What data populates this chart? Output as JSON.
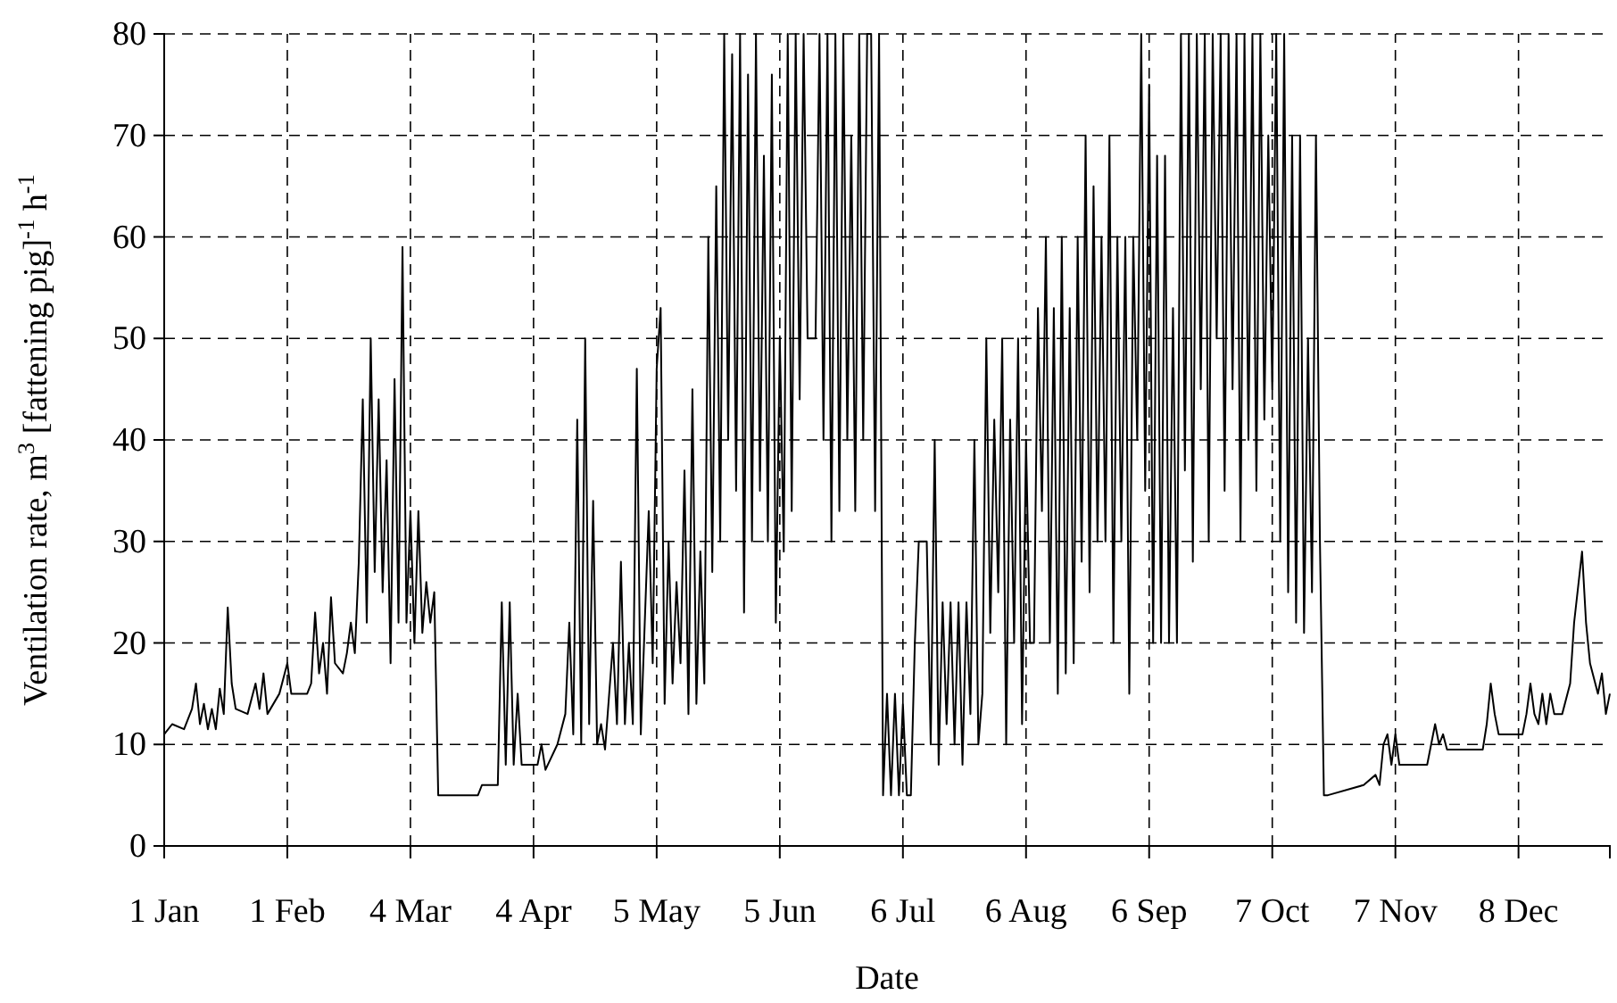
{
  "chart_data": {
    "type": "line",
    "xlabel": "Date",
    "ylabel": "Ventilation rate, m$^{3}$ [fattening pig]$^{-1}$ h$^{-1}$",
    "xlim": [
      "--01-01",
      "--12-31"
    ],
    "xticks": [
      {
        "value": "--01-01",
        "label": "1 Jan"
      },
      {
        "value": "--02-01",
        "label": "1 Feb"
      },
      {
        "value": "--03-04",
        "label": "4 Mar"
      },
      {
        "value": "--04-04",
        "label": "4 Apr"
      },
      {
        "value": "--05-05",
        "label": "5 May"
      },
      {
        "value": "--06-05",
        "label": "5 Jun"
      },
      {
        "value": "--07-06",
        "label": "6 Jul"
      },
      {
        "value": "--08-06",
        "label": "6 Aug"
      },
      {
        "value": "--09-06",
        "label": "6 Sep"
      },
      {
        "value": "--10-07",
        "label": "7 Oct"
      },
      {
        "value": "--11-07",
        "label": "7 Nov"
      },
      {
        "value": "--12-08",
        "label": "8 Dec"
      }
    ],
    "ylim": [
      0,
      80
    ],
    "yticks": [
      0,
      10,
      20,
      30,
      40,
      50,
      60,
      70,
      80
    ],
    "grid": true,
    "series": [
      {
        "color": "#000000",
        "x": [
          "--01-01",
          "--01-03",
          "--01-06",
          "--01-08",
          "--01-09",
          "--01-10",
          "--01-11",
          "--01-12",
          "--01-13",
          "--01-14",
          "--01-15",
          "--01-16",
          "--01-17",
          "--01-18",
          "--01-19",
          "--01-22",
          "--01-24",
          "--01-25",
          "--01-26",
          "--01-27",
          "--01-30",
          "--02-01",
          "--02-02",
          "--02-06",
          "--02-07",
          "--02-08",
          "--02-09",
          "--02-10",
          "--02-11",
          "--02-12",
          "--02-13",
          "--02-15",
          "--02-16",
          "--02-17",
          "--02-18",
          "--02-19",
          "--02-20",
          "--02-21",
          "--02-22",
          "--02-23",
          "--02-24",
          "--02-25",
          "--02-26",
          "--02-27",
          "--02-28",
          "--03-01",
          "--03-02",
          "--03-03",
          "--03-04",
          "--03-05",
          "--03-06",
          "--03-07",
          "--03-08",
          "--03-09",
          "--03-10",
          "--03-11",
          "--03-21",
          "--03-22",
          "--03-26",
          "--03-27",
          "--03-28",
          "--03-29",
          "--03-30",
          "--03-31",
          "--04-01",
          "--04-05",
          "--04-06",
          "--04-07",
          "--04-10",
          "--04-12",
          "--04-13",
          "--04-14",
          "--04-15",
          "--04-16",
          "--04-17",
          "--04-18",
          "--04-19",
          "--04-20",
          "--04-21",
          "--04-22",
          "--04-24",
          "--04-25",
          "--04-26",
          "--04-27",
          "--04-28",
          "--04-29",
          "--04-30",
          "--05-01",
          "--05-03",
          "--05-04",
          "--05-05",
          "--05-06",
          "--05-07",
          "--05-08",
          "--05-09",
          "--05-10",
          "--05-11",
          "--05-12",
          "--05-13",
          "--05-14",
          "--05-15",
          "--05-16",
          "--05-17",
          "--05-18",
          "--05-19",
          "--05-20",
          "--05-21",
          "--05-22",
          "--05-23",
          "--05-24",
          "--05-25",
          "--05-26",
          "--05-27",
          "--05-28",
          "--05-29",
          "--05-30",
          "--05-31",
          "--06-01",
          "--06-02",
          "--06-03",
          "--06-04",
          "--06-05",
          "--06-06",
          "--06-07",
          "--06-08",
          "--06-09",
          "--06-10",
          "--06-11",
          "--06-12",
          "--06-14",
          "--06-15",
          "--06-16",
          "--06-17",
          "--06-18",
          "--06-19",
          "--06-20",
          "--06-21",
          "--06-22",
          "--06-23",
          "--06-24",
          "--06-25",
          "--06-26",
          "--06-27",
          "--06-28",
          "--06-29",
          "--06-30",
          "--07-01",
          "--07-02",
          "--07-03",
          "--07-04",
          "--07-05",
          "--07-06",
          "--07-07",
          "--07-08",
          "--07-09",
          "--07-10",
          "--07-12",
          "--07-13",
          "--07-14",
          "--07-15",
          "--07-16",
          "--07-17",
          "--07-18",
          "--07-19",
          "--07-20",
          "--07-21",
          "--07-22",
          "--07-23",
          "--07-24",
          "--07-25",
          "--07-26",
          "--07-27",
          "--07-28",
          "--07-29",
          "--07-30",
          "--07-31",
          "--08-01",
          "--08-02",
          "--08-03",
          "--08-04",
          "--08-05",
          "--08-06",
          "--08-07",
          "--08-08",
          "--08-09",
          "--08-10",
          "--08-11",
          "--08-12",
          "--08-13",
          "--08-14",
          "--08-15",
          "--08-16",
          "--08-17",
          "--08-18",
          "--08-19",
          "--08-20",
          "--08-21",
          "--08-22",
          "--08-23",
          "--08-24",
          "--08-25",
          "--08-26",
          "--08-27",
          "--08-28",
          "--08-29",
          "--08-30",
          "--08-31",
          "--09-01",
          "--09-02",
          "--09-03",
          "--09-04",
          "--09-05",
          "--09-06",
          "--09-07",
          "--09-08",
          "--09-09",
          "--09-10",
          "--09-11",
          "--09-12",
          "--09-13",
          "--09-14",
          "--09-15",
          "--09-16",
          "--09-17",
          "--09-18",
          "--09-19",
          "--09-20",
          "--09-21",
          "--09-22",
          "--09-23",
          "--09-24",
          "--09-25",
          "--09-26",
          "--09-27",
          "--09-28",
          "--09-29",
          "--09-30",
          "--10-01",
          "--10-02",
          "--10-03",
          "--10-04",
          "--10-05",
          "--10-06",
          "--10-07",
          "--10-08",
          "--10-09",
          "--10-10",
          "--10-11",
          "--10-12",
          "--10-13",
          "--10-14",
          "--10-15",
          "--10-16",
          "--10-17",
          "--10-18",
          "--10-19",
          "--10-20",
          "--10-21",
          "--10-30",
          "--11-02",
          "--11-03",
          "--11-04",
          "--11-05",
          "--11-06",
          "--11-07",
          "--11-08",
          "--11-15",
          "--11-16",
          "--11-17",
          "--11-18",
          "--11-19",
          "--11-20",
          "--11-29",
          "--11-30",
          "--12-01",
          "--12-02",
          "--12-03",
          "--12-09",
          "--12-10",
          "--12-11",
          "--12-12",
          "--12-13",
          "--12-14",
          "--12-15",
          "--12-16",
          "--12-17",
          "--12-19",
          "--12-21",
          "--12-22",
          "--12-24",
          "--12-25",
          "--12-26",
          "--12-28",
          "--12-29",
          "--12-30",
          "--12-31"
        ],
        "values": [
          11,
          12,
          11.5,
          13.5,
          16,
          12,
          14,
          11.5,
          13.5,
          11.5,
          15.5,
          13,
          23.5,
          16,
          13.5,
          13,
          16,
          13.5,
          17,
          13,
          15,
          18,
          15,
          15,
          16,
          23,
          17,
          20,
          15,
          24.5,
          18,
          17,
          19,
          22,
          19,
          28,
          44,
          22,
          50,
          27,
          44,
          25,
          38,
          18,
          46,
          22,
          59,
          22,
          33,
          20,
          33,
          21,
          26,
          22,
          25,
          5,
          5,
          6,
          6,
          24,
          8,
          24,
          8,
          15,
          8,
          8,
          10,
          7.5,
          10,
          13,
          22,
          11,
          42,
          10,
          50,
          12,
          34,
          10,
          12,
          9.5,
          20,
          12,
          28,
          12,
          20,
          12,
          47,
          11,
          33,
          18,
          47,
          53,
          14,
          30,
          16,
          26,
          18,
          37,
          13,
          45,
          14,
          29,
          16,
          60,
          27,
          65,
          30,
          80,
          40,
          78,
          35,
          80,
          23,
          76,
          30,
          80,
          35,
          68,
          30,
          76,
          22,
          50,
          29,
          80,
          33,
          80,
          44,
          80,
          50,
          50,
          80,
          40,
          80,
          30,
          80,
          33,
          80,
          40,
          70,
          33,
          80,
          40,
          80,
          80,
          33,
          80,
          5,
          15,
          5,
          15,
          5,
          14,
          5,
          5,
          20,
          30,
          30,
          10,
          40,
          8,
          24,
          12,
          24,
          10,
          24,
          8,
          24,
          13,
          40,
          10,
          15,
          50,
          21,
          42,
          25,
          50,
          10,
          42,
          20,
          50,
          12,
          40,
          20,
          20,
          53,
          33,
          60,
          20,
          53,
          15,
          60,
          17,
          53,
          18,
          60,
          28,
          70,
          25,
          65,
          30,
          60,
          30,
          70,
          20,
          60,
          30,
          60,
          15,
          60,
          40,
          80,
          35,
          75,
          20,
          68,
          20,
          68,
          20,
          53,
          20,
          80,
          37,
          80,
          28,
          80,
          45,
          80,
          30,
          80,
          50,
          80,
          35,
          80,
          45,
          80,
          30,
          80,
          40,
          80,
          35,
          80,
          42,
          70,
          45,
          80,
          30,
          80,
          25,
          70,
          22,
          70,
          21,
          50,
          25,
          70,
          30,
          5,
          5,
          6,
          7,
          6,
          10,
          11,
          8,
          11,
          8,
          8,
          10,
          12,
          10,
          11,
          9.5,
          9.5,
          12,
          16,
          13,
          11,
          11,
          13,
          16,
          13,
          12,
          15,
          12,
          15,
          13,
          13,
          16,
          22,
          29,
          22,
          18,
          15,
          17,
          13,
          15
        ]
      }
    ]
  }
}
